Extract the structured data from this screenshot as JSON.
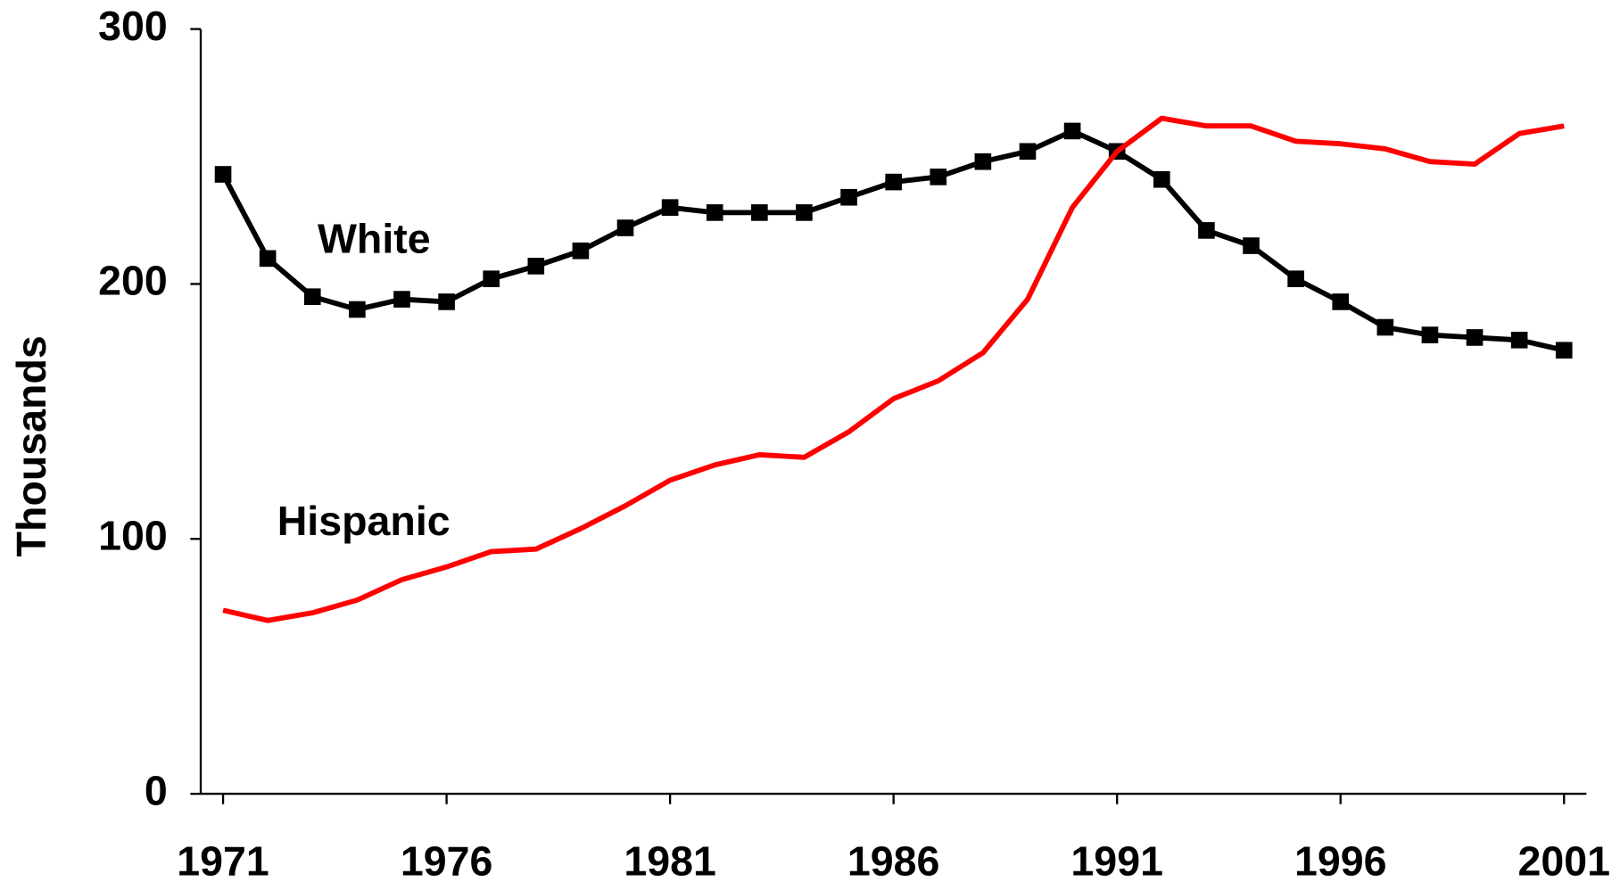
{
  "chart_data": {
    "type": "line",
    "ylabel": "Thousands",
    "x": [
      1971,
      1972,
      1973,
      1974,
      1975,
      1976,
      1977,
      1978,
      1979,
      1980,
      1981,
      1982,
      1983,
      1984,
      1985,
      1986,
      1987,
      1988,
      1989,
      1990,
      1991,
      1992,
      1993,
      1994,
      1995,
      1996,
      1997,
      1998,
      1999,
      2000,
      2001
    ],
    "series": [
      {
        "name": "White",
        "color": "#000000",
        "marker": "square",
        "values": [
          243,
          210,
          195,
          190,
          194,
          193,
          202,
          207,
          213,
          222,
          230,
          228,
          228,
          228,
          234,
          240,
          242,
          248,
          252,
          260,
          252,
          241,
          221,
          215,
          202,
          193,
          183,
          180,
          179,
          178,
          174
        ]
      },
      {
        "name": "Hispanic",
        "color": "#ff0000",
        "values": [
          72,
          68,
          71,
          76,
          84,
          89,
          95,
          96,
          104,
          113,
          123,
          129,
          133,
          132,
          142,
          155,
          162,
          173,
          194,
          230,
          252,
          265,
          262,
          262,
          256,
          255,
          253,
          248,
          247,
          259,
          262
        ]
      }
    ],
    "xlim": [
      1970.5,
      2001.5
    ],
    "xticks": [
      1971,
      1976,
      1981,
      1986,
      1991,
      1996,
      2001
    ],
    "ylim": [
      0,
      300
    ],
    "yticks": [
      0,
      100,
      200,
      300
    ],
    "grid": false
  }
}
